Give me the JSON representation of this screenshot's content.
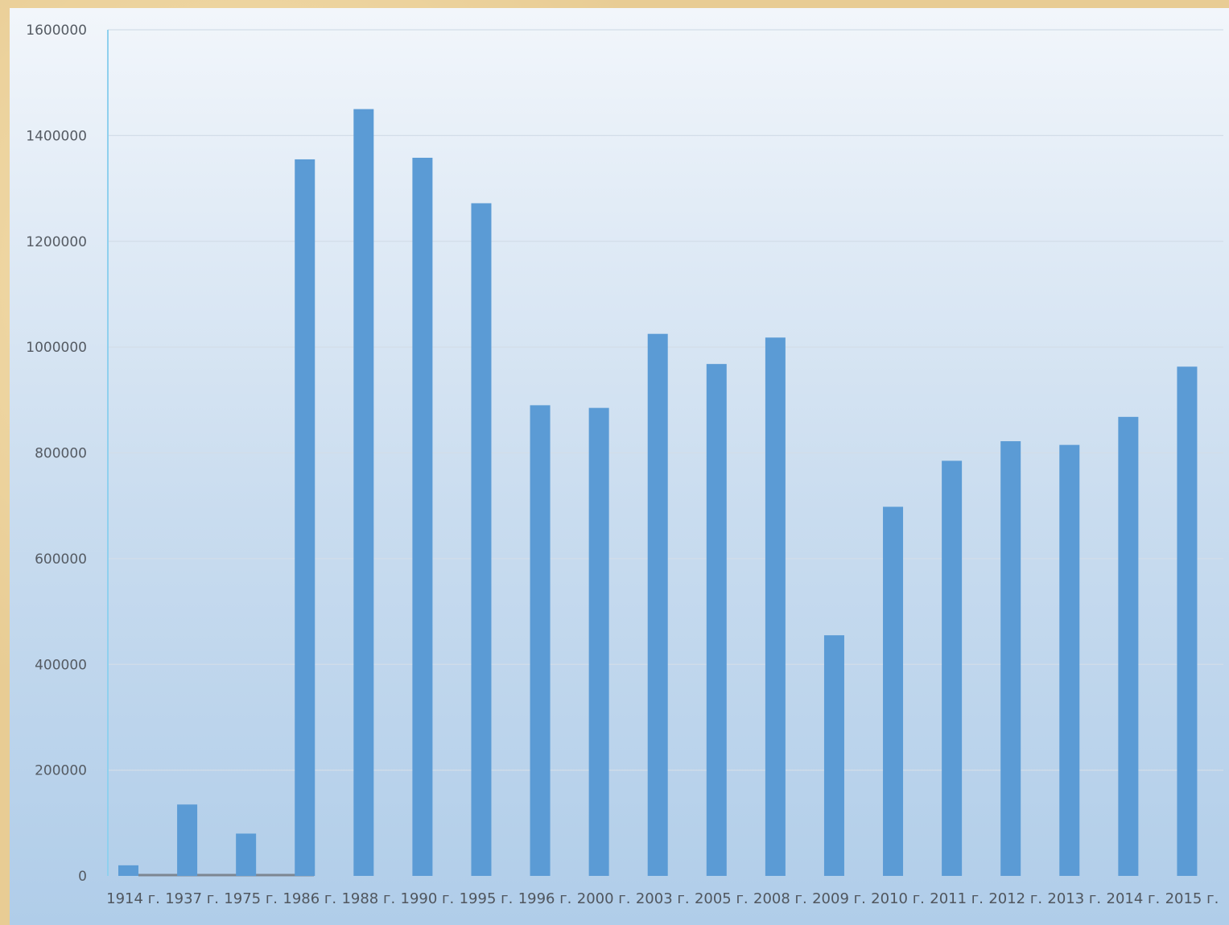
{
  "chart_data": {
    "type": "bar",
    "categories": [
      "1914 г.",
      "1937 г.",
      "1975 г.",
      "1986 г.",
      "1988 г.",
      "1990 г.",
      "1995 г.",
      "1996 г.",
      "2000 г.",
      "2003 г.",
      "2005 г.",
      "2008 г.",
      "2009 г.",
      "2010 г.",
      "2011 г.",
      "2012 г.",
      "2013 г.",
      "2014 г.",
      "2015 г."
    ],
    "values": [
      20000,
      135000,
      80000,
      1355000,
      1450000,
      1358000,
      1272000,
      890000,
      885000,
      1025000,
      968000,
      1018000,
      455000,
      698000,
      785000,
      822000,
      815000,
      868000,
      963000
    ],
    "yticks": [
      "0",
      "200000",
      "400000",
      "600000",
      "800000",
      "1000000",
      "1200000",
      "1400000",
      "1600000"
    ],
    "ylim": [
      0,
      1600000
    ],
    "grid": true,
    "legend": "none",
    "bar_color": "#5b9bd5",
    "axis_color": "#8fd0ee"
  }
}
